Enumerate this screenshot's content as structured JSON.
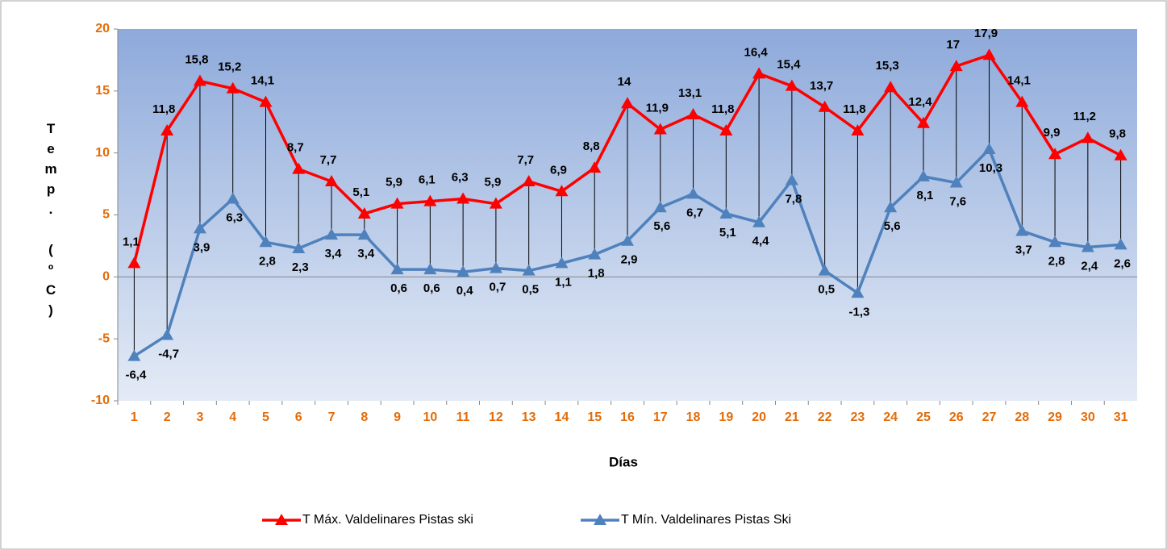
{
  "chart_data": {
    "type": "line",
    "x_label": "Días",
    "y_label": "Temp. (ºC)",
    "categories": [
      "1",
      "2",
      "3",
      "4",
      "5",
      "6",
      "7",
      "8",
      "9",
      "10",
      "11",
      "12",
      "13",
      "14",
      "15",
      "16",
      "17",
      "18",
      "19",
      "20",
      "21",
      "22",
      "23",
      "24",
      "25",
      "26",
      "27",
      "28",
      "29",
      "30",
      "31"
    ],
    "ylim": [
      -10,
      20
    ],
    "yticks": [
      -10,
      -5,
      0,
      5,
      10,
      15,
      20
    ],
    "grid": false,
    "hilo_lines": true,
    "legend": "bottom",
    "series": [
      {
        "name": "T Máx. Valdelinares Pistas ski",
        "color": "#ff0000",
        "values": [
          1.1,
          11.8,
          15.8,
          15.2,
          14.1,
          8.7,
          7.7,
          5.1,
          5.9,
          6.1,
          6.3,
          5.9,
          7.7,
          6.9,
          8.8,
          14,
          11.9,
          13.1,
          11.8,
          16.4,
          15.4,
          13.7,
          11.8,
          15.3,
          12.4,
          17,
          17.9,
          14.1,
          9.9,
          11.2,
          9.8
        ],
        "value_labels": [
          "1,1",
          "11,8",
          "15,8",
          "15,2",
          "14,1",
          "8,7",
          "7,7",
          "5,1",
          "5,9",
          "6,1",
          "6,3",
          "5,9",
          "7,7",
          "6,9",
          "8,8",
          "14",
          "11,9",
          "13,1",
          "11,8",
          "16,4",
          "15,4",
          "13,7",
          "11,8",
          "15,3",
          "12,4",
          "17",
          "17,9",
          "14,1",
          "9,9",
          "11,2",
          "9,8"
        ]
      },
      {
        "name": "T Mín. Valdelinares Pistas Ski",
        "color": "#4f81bd",
        "values": [
          -6.4,
          -4.7,
          3.9,
          6.3,
          2.8,
          2.3,
          3.4,
          3.4,
          0.6,
          0.6,
          0.4,
          0.7,
          0.5,
          1.1,
          1.8,
          2.9,
          5.6,
          6.7,
          5.1,
          4.4,
          7.8,
          0.5,
          -1.3,
          5.6,
          8.1,
          7.6,
          10.3,
          3.7,
          2.8,
          2.4,
          2.6
        ],
        "value_labels": [
          "-6,4",
          "-4,7",
          "3,9",
          "6,3",
          "2,8",
          "2,3",
          "3,4",
          "3,4",
          "0,6",
          "0,6",
          "0,4",
          "0,7",
          "0,5",
          "1,1",
          "1,8",
          "2,9",
          "5,6",
          "6,7",
          "5,1",
          "4,4",
          "7,8",
          "0,5",
          "-1,3",
          "5,6",
          "8,1",
          "7,6",
          "10,3",
          "3,7",
          "2,8",
          "2,4",
          "2,6"
        ]
      }
    ]
  }
}
